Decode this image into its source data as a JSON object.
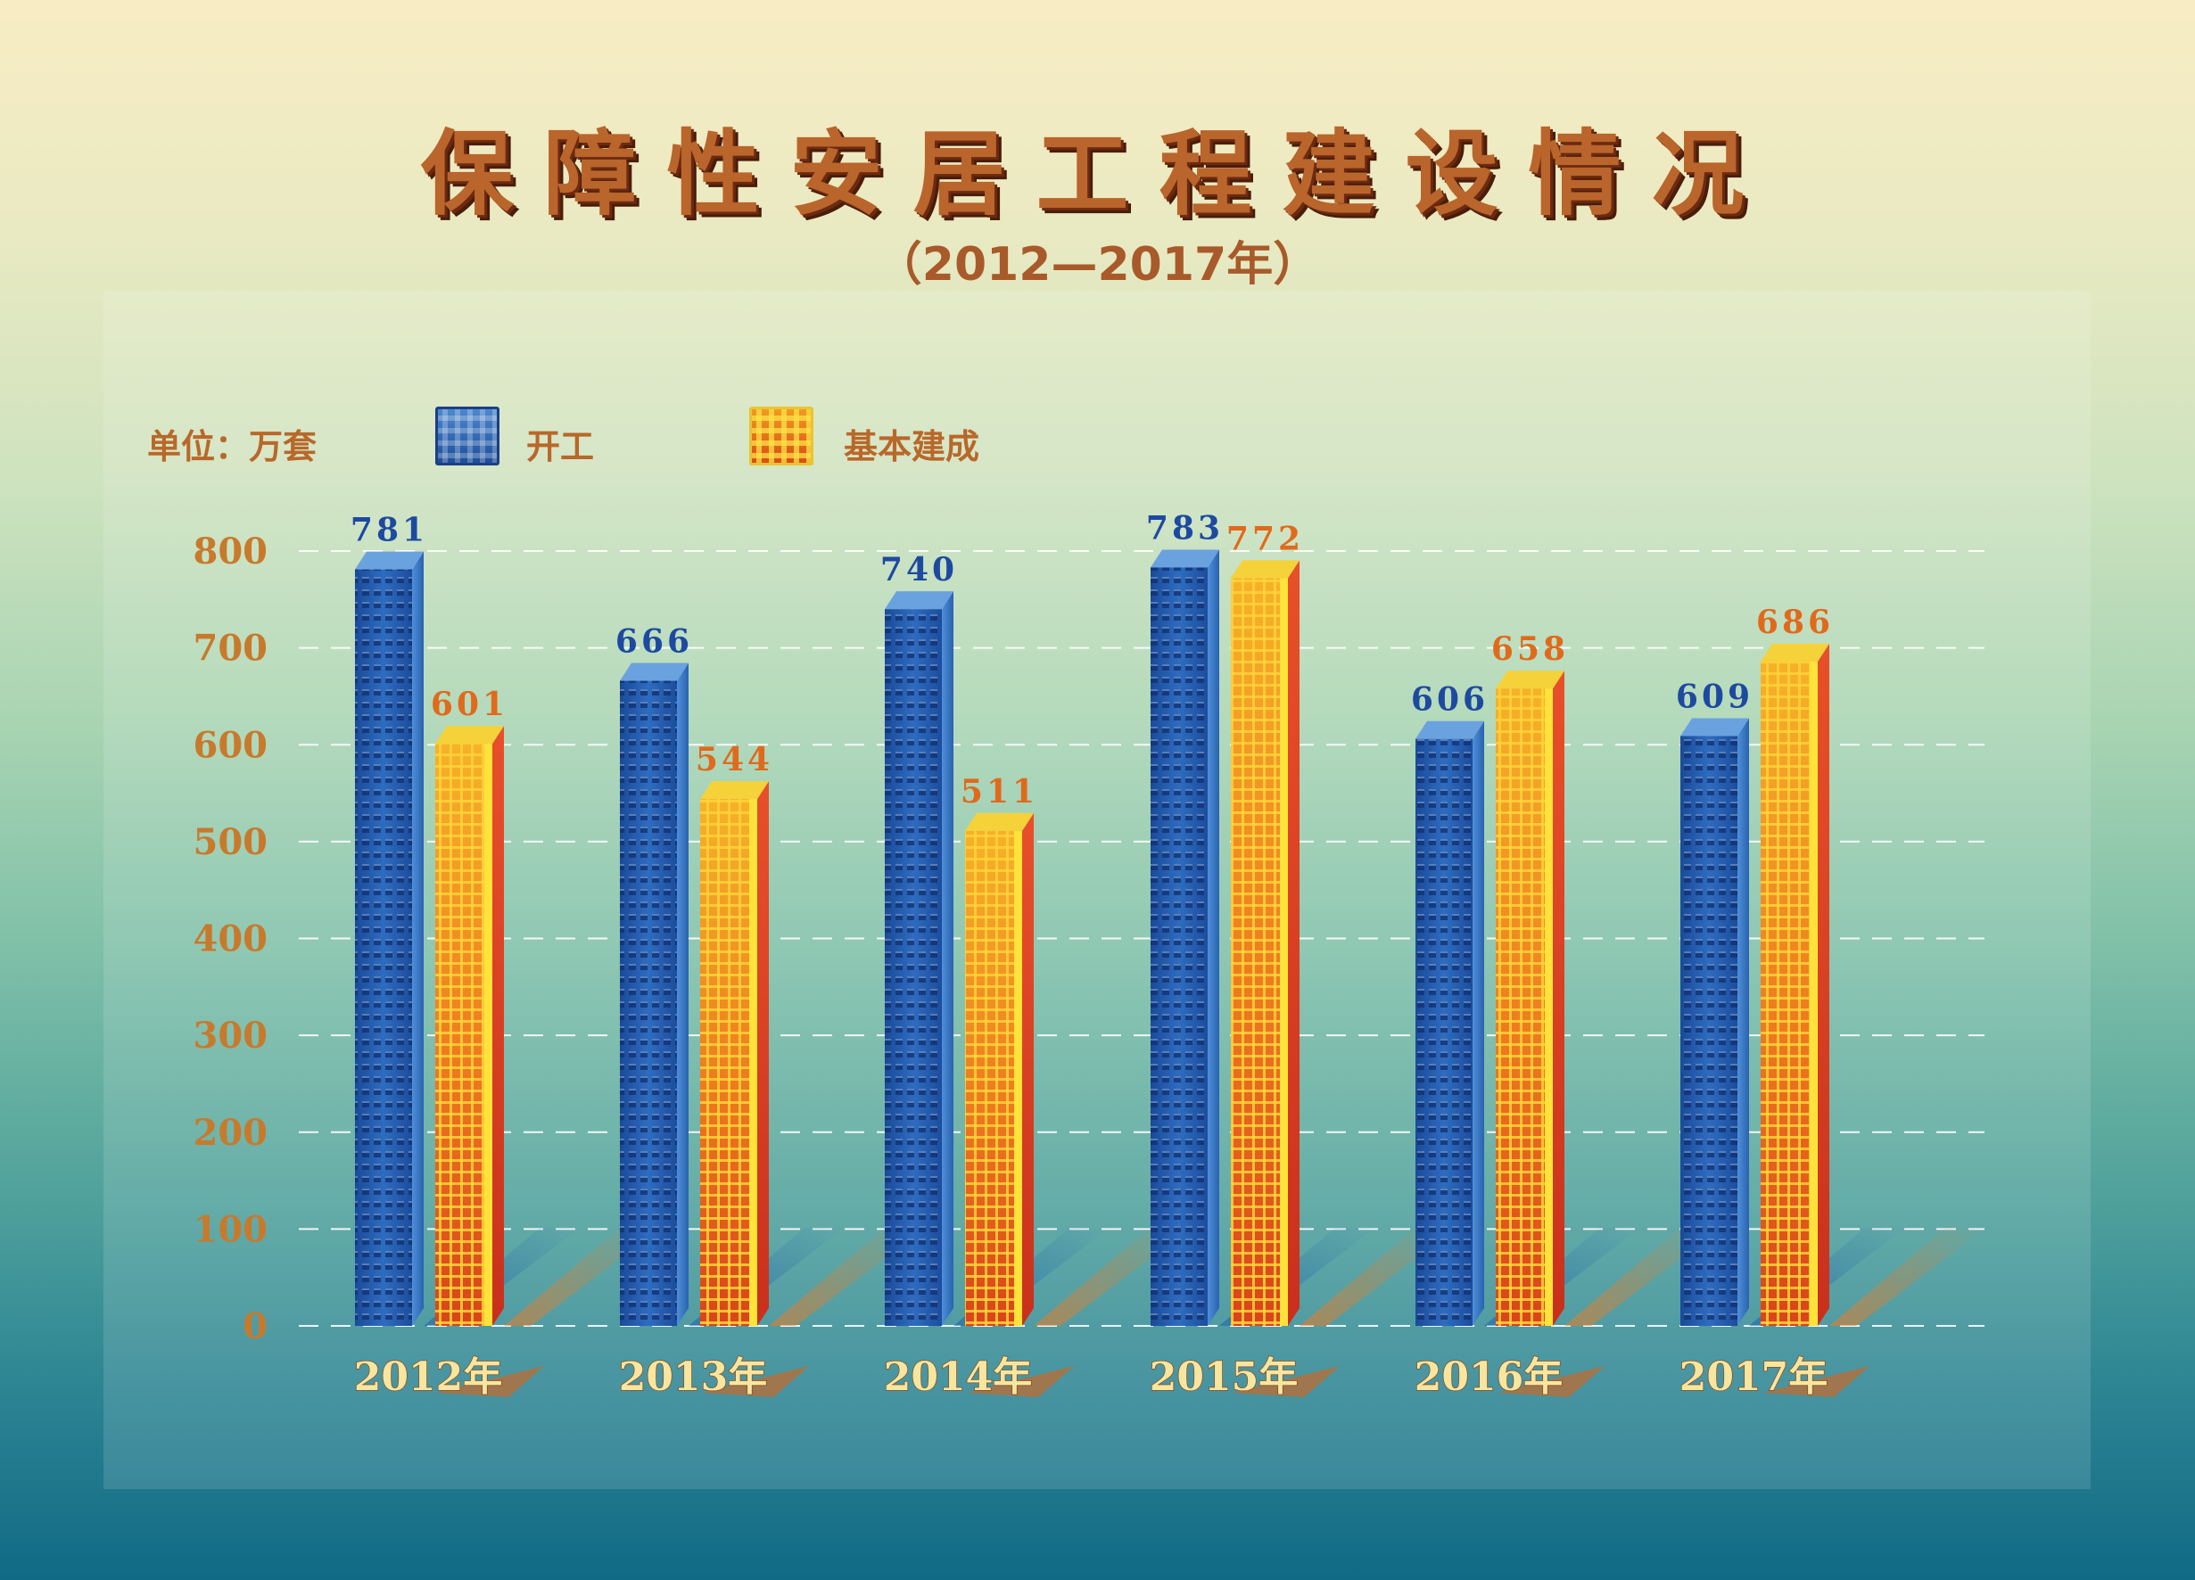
{
  "title": "保障性安居工程建设情况",
  "subtitle": "（2012—2017年）",
  "colors": {
    "kaigong": "#2a62b4",
    "jiben_jiancheng": "#ee7a1e",
    "axis_text": "#c77a2c",
    "title": "#b9652c"
  },
  "legend": {
    "unit": "单位：万套",
    "items": [
      "开工",
      "基本建成"
    ]
  },
  "chart_data": {
    "type": "bar",
    "title": "保障性安居工程建设情况",
    "subtitle": "（2012—2017年）",
    "unit": "单位：万套",
    "categories": [
      "2012年",
      "2013年",
      "2014年",
      "2015年",
      "2016年",
      "2017年"
    ],
    "series": [
      {
        "name": "开工",
        "values": [
          781,
          666,
          740,
          783,
          606,
          609
        ]
      },
      {
        "name": "基本建成",
        "values": [
          601,
          544,
          511,
          772,
          658,
          686
        ]
      }
    ],
    "yticks": [
      "0",
      "100",
      "200",
      "300",
      "400",
      "500",
      "600",
      "700",
      "800"
    ],
    "ylim": [
      0,
      800
    ],
    "grid": true,
    "legend_position": "top-left"
  }
}
